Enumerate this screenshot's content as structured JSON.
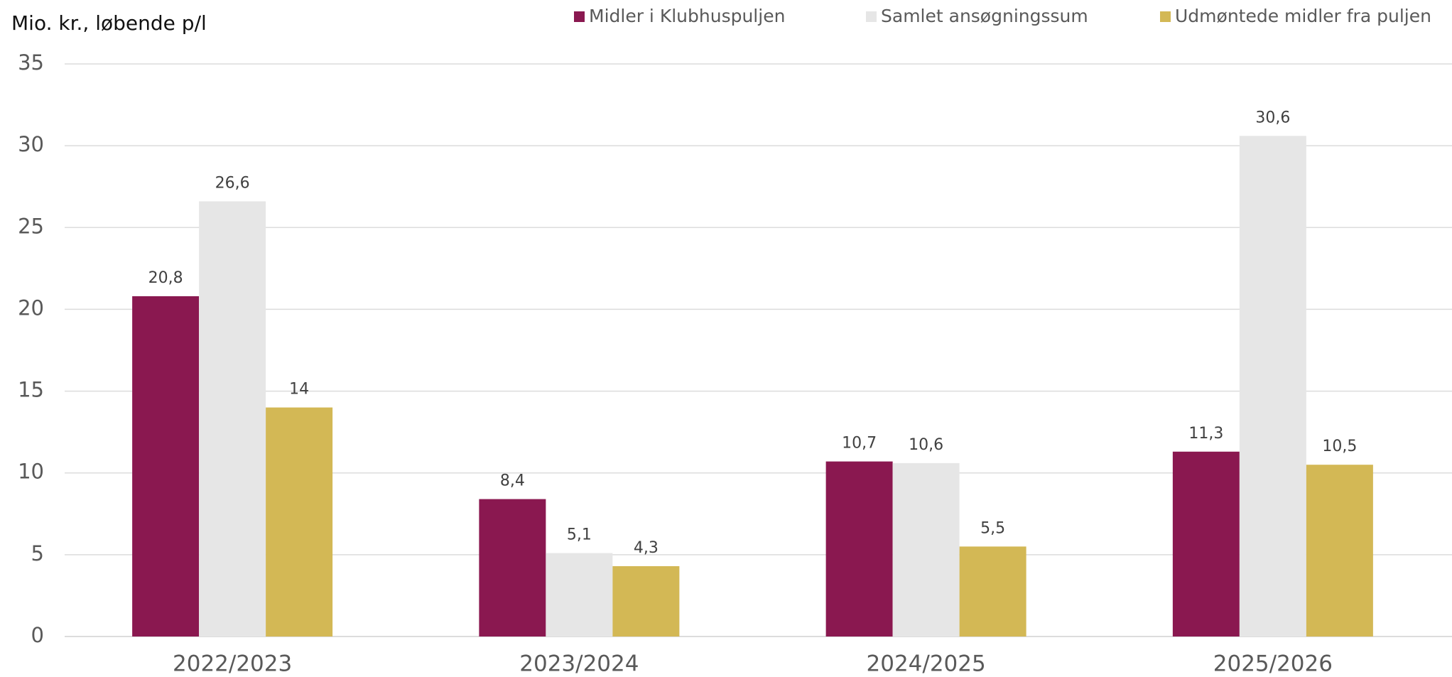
{
  "chart_data": {
    "type": "bar",
    "y_label": "Mio. kr., løbende p/l",
    "categories": [
      "2022/2023",
      "2023/2024",
      "2024/2025",
      "2025/2026"
    ],
    "series": [
      {
        "name": "Midler i Klubhuspuljen",
        "color": "#8a1850",
        "values": [
          20.8,
          8.4,
          10.7,
          11.3
        ],
        "value_labels": [
          "20,8",
          "8,4",
          "10,7",
          "11,3"
        ]
      },
      {
        "name": "Samlet ansøgningssum",
        "color": "#e6e6e6",
        "values": [
          26.6,
          5.1,
          10.6,
          30.6
        ],
        "value_labels": [
          "26,6",
          "5,1",
          "10,6",
          "30,6"
        ]
      },
      {
        "name": "Udmøntede midler fra puljen",
        "color": "#d3b855",
        "values": [
          14,
          4.3,
          5.5,
          10.5
        ],
        "value_labels": [
          "14",
          "4,3",
          "5,5",
          "10,5"
        ]
      }
    ],
    "ylim": [
      0,
      35
    ],
    "yticks": [
      0,
      5,
      10,
      15,
      20,
      25,
      30,
      35
    ],
    "grid": true,
    "legend": "top"
  }
}
